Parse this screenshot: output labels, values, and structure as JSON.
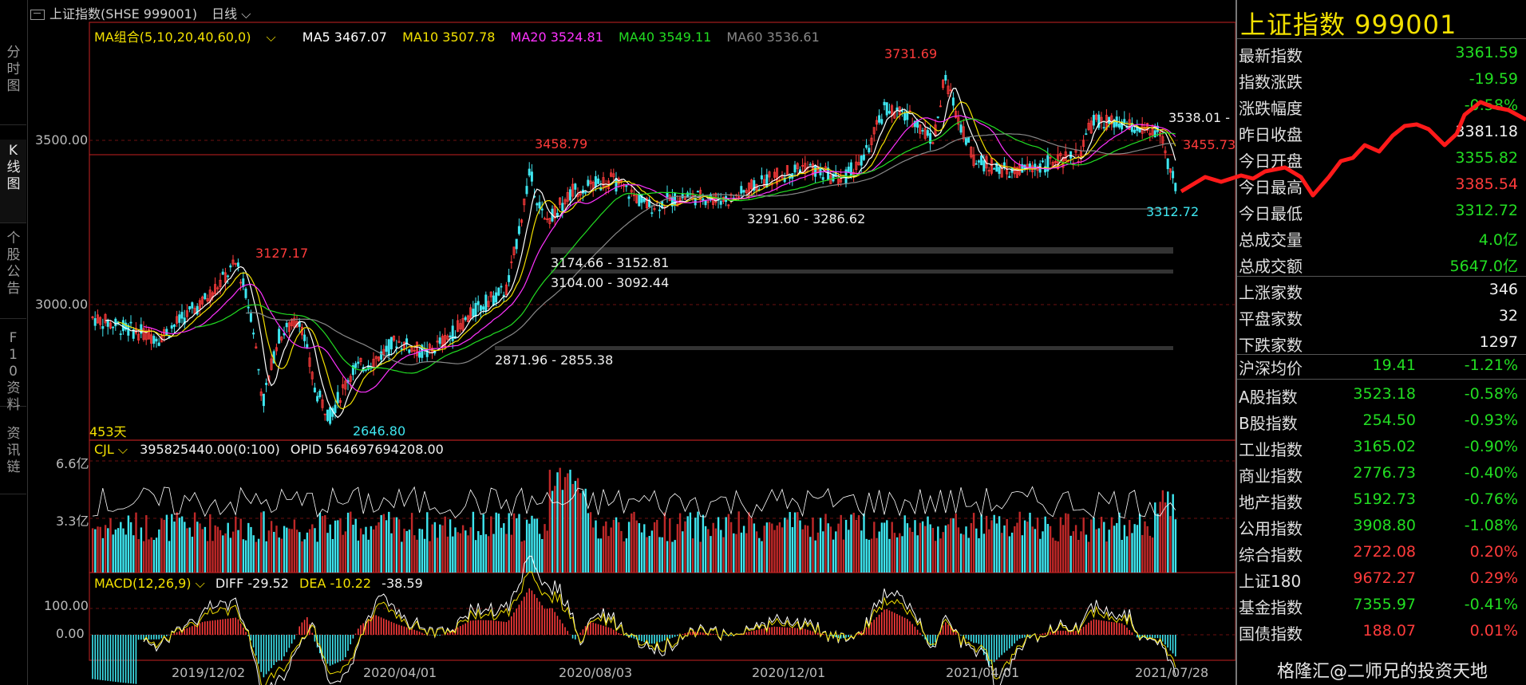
{
  "header": {
    "title": "上证指数(SHSE 999001)",
    "period": "日线"
  },
  "left_tabs": [
    {
      "label": "分时图"
    },
    {
      "label": "K线图"
    },
    {
      "label": "个股公告"
    },
    {
      "label": "F10资料"
    },
    {
      "label": "资讯链"
    }
  ],
  "ma_legend": {
    "group": "MA组合(5,10,20,40,60,0)",
    "ma5": "MA5 3467.07",
    "ma10": "MA10 3507.78",
    "ma20": "MA20 3524.81",
    "ma40": "MA40 3549.11",
    "ma60": "MA60 3536.61"
  },
  "price_axis": {
    "t1": "3500.00",
    "t2": "3000.00"
  },
  "annotations": {
    "high_peak": "3731.69",
    "peak_aug": "3458.79",
    "peak_jan": "3127.17",
    "low_mar": "2646.80",
    "last_low": "3312.72",
    "right_a": "3538.01 -",
    "right_b": "3455.73",
    "zone1": "3291.60 - 3286.62",
    "zone2": "3174.66 - 3152.81",
    "zone3": "3104.00 - 3092.44",
    "zone4": "2871.96 - 2855.38",
    "days": "453天"
  },
  "volume": {
    "name": "CJL",
    "values": "395825440.00(0:100)",
    "opid": "OPID 564697694208.00",
    "t1": "6.6亿",
    "t2": "3.3亿"
  },
  "macd": {
    "name": "MACD(12,26,9)",
    "diff": "DIFF -29.52",
    "dea": "DEA -10.22",
    "val": "-38.59",
    "t1": "100.00",
    "t2": "0.00"
  },
  "dates": [
    "2019/12/02",
    "2020/04/01",
    "2020/08/03",
    "2020/12/01",
    "2021/04/01",
    "2021/07/28"
  ],
  "panel": {
    "title": "上证指数  999001",
    "quote": [
      {
        "k": "最新指数",
        "v": "3361.59",
        "c": "g"
      },
      {
        "k": "指数涨跌",
        "v": "-19.59",
        "c": "g"
      },
      {
        "k": "涨跌幅度",
        "v": "-0.58%",
        "c": "g"
      },
      {
        "k": "昨日收盘",
        "v": "3381.18",
        "c": "w"
      },
      {
        "k": "今日开盘",
        "v": "3355.82",
        "c": "g"
      },
      {
        "k": "今日最高",
        "v": "3385.54",
        "c": "r"
      },
      {
        "k": "今日最低",
        "v": "3312.72",
        "c": "g"
      },
      {
        "k": "总成交量",
        "v": "4.0亿",
        "c": "g"
      },
      {
        "k": "总成交额",
        "v": "5647.0亿",
        "c": "g"
      }
    ],
    "breadth": [
      {
        "k": "上涨家数",
        "v": "346"
      },
      {
        "k": "平盘家数",
        "v": "32"
      },
      {
        "k": "下跌家数",
        "v": "1297"
      }
    ],
    "avg": {
      "k": "沪深均价",
      "m": "19.41",
      "v": "-1.21%"
    },
    "indices": [
      {
        "k": "A股指数",
        "m": "3523.18",
        "v": "-0.58%",
        "c": "g"
      },
      {
        "k": "B股指数",
        "m": "254.50",
        "v": "-0.93%",
        "c": "g"
      },
      {
        "k": "工业指数",
        "m": "3165.02",
        "v": "-0.90%",
        "c": "g"
      },
      {
        "k": "商业指数",
        "m": "2776.73",
        "v": "-0.40%",
        "c": "g"
      },
      {
        "k": "地产指数",
        "m": "5192.73",
        "v": "-0.76%",
        "c": "g"
      },
      {
        "k": "公用指数",
        "m": "3908.80",
        "v": "-1.08%",
        "c": "g"
      },
      {
        "k": "综合指数",
        "m": "2722.08",
        "v": "0.20%",
        "c": "r"
      },
      {
        "k": "上证180",
        "m": "9672.27",
        "v": "0.29%",
        "c": "r"
      },
      {
        "k": "基金指数",
        "m": "7355.97",
        "v": "-0.41%",
        "c": "g"
      },
      {
        "k": "国债指数",
        "m": "188.07",
        "v": "0.01%",
        "c": "r"
      }
    ]
  },
  "watermark": "格隆汇@二师兄的投资天地",
  "colors": {
    "up": "#ff3b3b",
    "down": "#3ee6f0",
    "ma5": "#ffffff",
    "ma10": "#f2e000",
    "ma20": "#ff33ff",
    "ma40": "#22dd22",
    "ma60": "#888888"
  }
}
